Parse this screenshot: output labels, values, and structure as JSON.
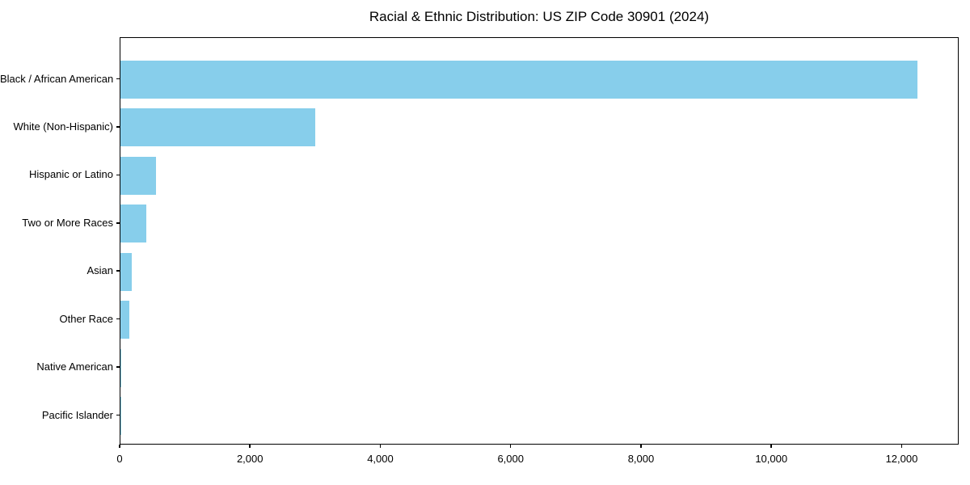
{
  "chart_data": {
    "type": "bar",
    "orientation": "horizontal",
    "title": "Racial & Ethnic Distribution: US ZIP Code 30901 (2024)",
    "categories": [
      "Black / African American",
      "White (Non-Hispanic)",
      "Hispanic or Latino",
      "Two or More Races",
      "Asian",
      "Other Race",
      "Native American",
      "Pacific Islander"
    ],
    "values": [
      12250,
      3000,
      550,
      400,
      175,
      135,
      10,
      5
    ],
    "xlabel": "",
    "ylabel": "",
    "xlim": [
      0,
      12875
    ],
    "x_ticks": [
      0,
      2000,
      4000,
      6000,
      8000,
      10000,
      12000
    ],
    "x_tick_labels": [
      "0",
      "2,000",
      "4,000",
      "6,000",
      "8,000",
      "10,000",
      "12,000"
    ],
    "bar_color": "#87CEEB",
    "frame_color": "#000000",
    "text_color": "#000000",
    "grid": false,
    "legend": null
  }
}
